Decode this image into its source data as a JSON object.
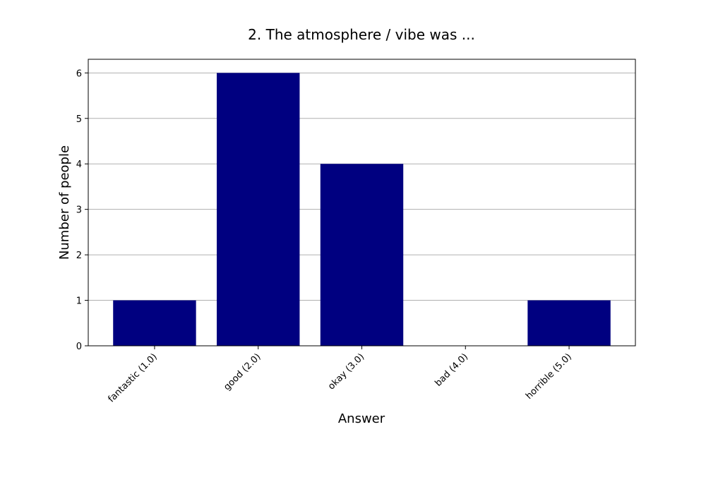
{
  "chart_data": {
    "type": "bar",
    "title": "2. The atmosphere / vibe was ...",
    "xlabel": "Answer",
    "ylabel": "Number of people",
    "categories": [
      "fantastic (1.0)",
      "good (2.0)",
      "okay (3.0)",
      "bad (4.0)",
      "horrible (5.0)"
    ],
    "values": [
      1,
      6,
      4,
      0,
      1
    ],
    "ylim": [
      0,
      6.3
    ],
    "yticks": [
      "0",
      "1",
      "2",
      "3",
      "4",
      "5",
      "6"
    ],
    "grid": "horizontal",
    "bar_color": "#000080",
    "grid_color": "#b0b0b0"
  }
}
